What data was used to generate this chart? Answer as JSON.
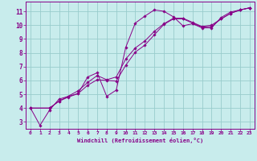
{
  "title": "Windchill (Refroidissement éolien,°C)",
  "bg_color": "#c8ecec",
  "line_color": "#880088",
  "grid_color": "#99cccc",
  "xlim": [
    -0.5,
    23.5
  ],
  "ylim": [
    2.5,
    11.7
  ],
  "xticks": [
    0,
    1,
    2,
    3,
    4,
    5,
    6,
    7,
    8,
    9,
    10,
    11,
    12,
    13,
    14,
    15,
    16,
    17,
    18,
    19,
    20,
    21,
    22,
    23
  ],
  "yticks": [
    3,
    4,
    5,
    6,
    7,
    8,
    9,
    10,
    11
  ],
  "series1_x": [
    0,
    1,
    2,
    3,
    4,
    5,
    6,
    7,
    8,
    9,
    10,
    11,
    12,
    13,
    14,
    15,
    16,
    17,
    18,
    19,
    20,
    21,
    22,
    23
  ],
  "series1_y": [
    4.0,
    2.75,
    3.85,
    4.65,
    4.85,
    5.05,
    6.25,
    6.55,
    4.85,
    5.3,
    8.4,
    10.15,
    10.65,
    11.1,
    11.0,
    10.6,
    9.95,
    10.1,
    9.8,
    9.8,
    10.55,
    10.95,
    11.1,
    11.25
  ],
  "series2_x": [
    0,
    2,
    3,
    4,
    5,
    6,
    7,
    8,
    9,
    10,
    11,
    12,
    13,
    14,
    15,
    16,
    17,
    18,
    19,
    20,
    21,
    22,
    23
  ],
  "series2_y": [
    4.0,
    4.0,
    4.5,
    4.8,
    5.05,
    5.65,
    6.05,
    6.0,
    5.95,
    7.1,
    8.05,
    8.55,
    9.3,
    10.05,
    10.45,
    10.45,
    10.15,
    9.85,
    9.9,
    10.45,
    10.85,
    11.1,
    11.25
  ],
  "series3_x": [
    0,
    2,
    3,
    5,
    6,
    7,
    8,
    9,
    10,
    11,
    12,
    13,
    14,
    15,
    16,
    17,
    18,
    19,
    20,
    21,
    22,
    23
  ],
  "series3_y": [
    4.0,
    4.0,
    4.5,
    5.25,
    5.85,
    6.35,
    6.05,
    6.25,
    7.55,
    8.35,
    8.85,
    9.55,
    10.1,
    10.5,
    10.5,
    10.2,
    9.9,
    10.0,
    10.45,
    10.85,
    11.1,
    11.25
  ]
}
